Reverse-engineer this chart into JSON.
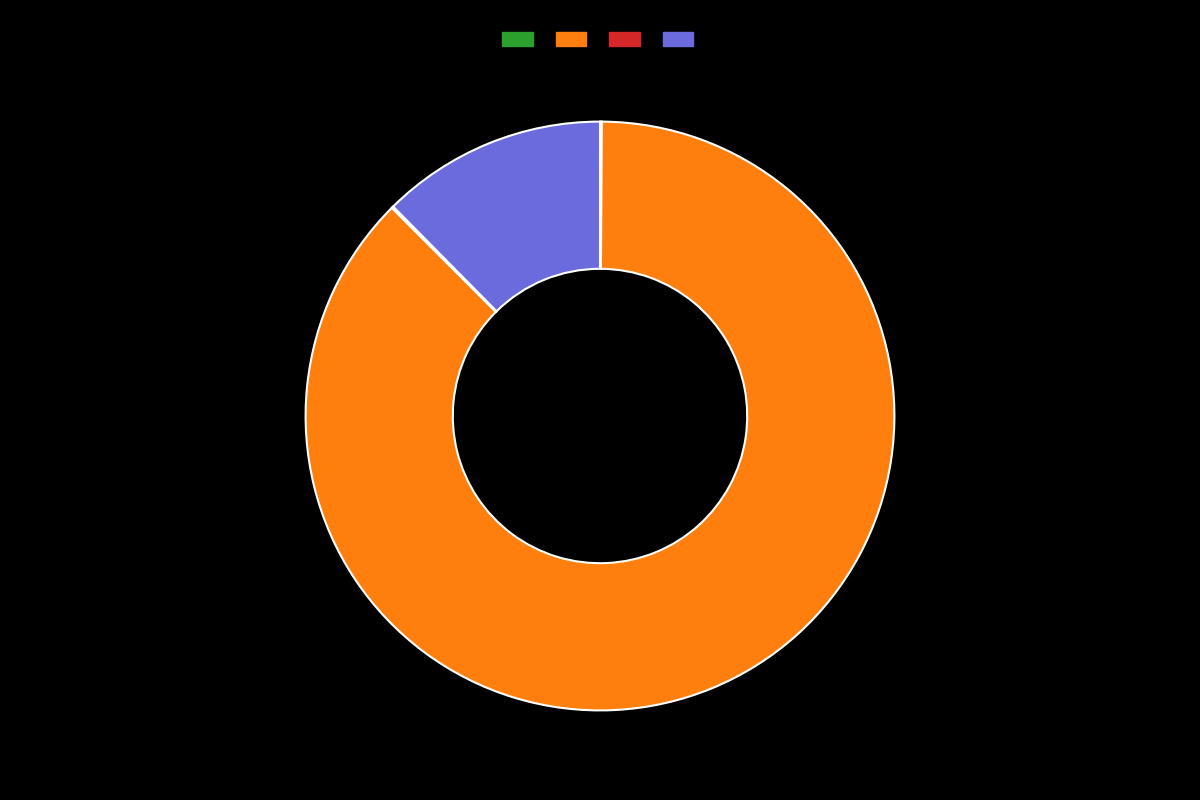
{
  "labels": [
    "",
    "",
    "",
    ""
  ],
  "values": [
    0.1,
    87.4,
    0.1,
    12.4
  ],
  "colors": [
    "#2ca02c",
    "#ff7f0e",
    "#d62728",
    "#6b6bdd"
  ],
  "legend_colors": [
    "#2ca02c",
    "#ff7f0e",
    "#d62728",
    "#6b6bdd"
  ],
  "background_color": "#000000",
  "wedge_linewidth": 1.5,
  "wedge_linecolor": "#ffffff",
  "donut_ratio": 0.5,
  "startangle": 90
}
